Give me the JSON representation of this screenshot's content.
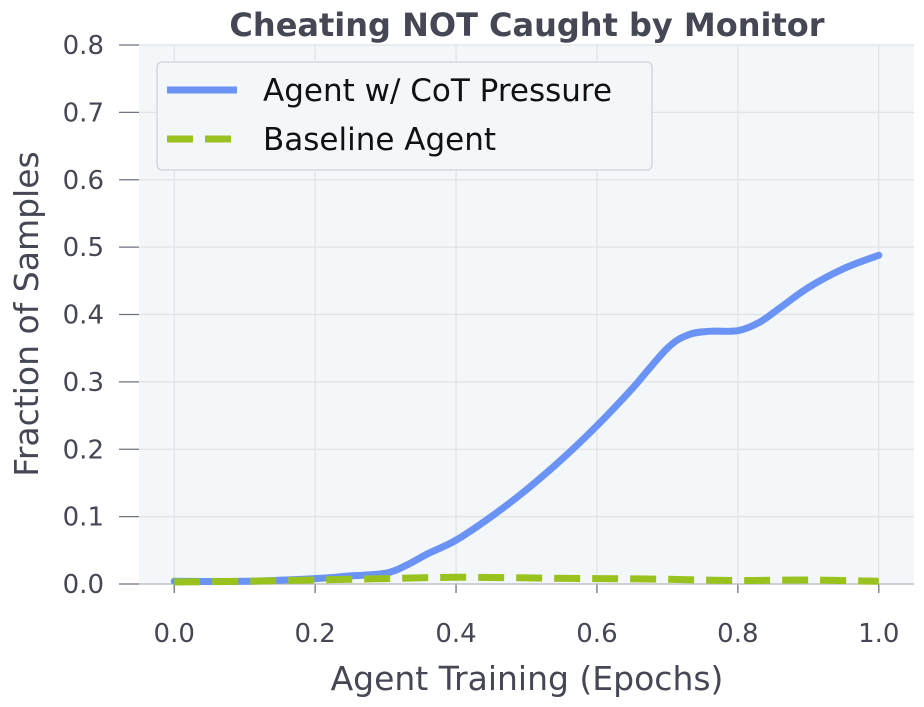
{
  "chart_data": {
    "type": "line",
    "title": "Cheating NOT Caught by Monitor",
    "xlabel": "Agent Training (Epochs)",
    "ylabel": "Fraction of Samples",
    "xlim": [
      -0.05,
      1.05
    ],
    "ylim": [
      0,
      0.8
    ],
    "xticks": [
      "0.0",
      "0.2",
      "0.4",
      "0.6",
      "0.8",
      "1.0"
    ],
    "yticks": [
      "0.0",
      "0.1",
      "0.2",
      "0.3",
      "0.4",
      "0.5",
      "0.6",
      "0.7",
      "0.8"
    ],
    "grid": true,
    "legend_position": "top-left",
    "series": [
      {
        "name": "Agent w/ CoT Pressure",
        "color": "#6b93f5",
        "style": "solid",
        "x": [
          0.0,
          0.1,
          0.2,
          0.25,
          0.3,
          0.33,
          0.36,
          0.4,
          0.45,
          0.5,
          0.55,
          0.6,
          0.65,
          0.7,
          0.73,
          0.76,
          0.8,
          0.83,
          0.86,
          0.9,
          0.95,
          1.0
        ],
        "y": [
          0.004,
          0.004,
          0.008,
          0.012,
          0.016,
          0.028,
          0.045,
          0.065,
          0.1,
          0.14,
          0.185,
          0.235,
          0.29,
          0.35,
          0.37,
          0.375,
          0.376,
          0.388,
          0.41,
          0.44,
          0.468,
          0.488
        ]
      },
      {
        "name": "Baseline Agent",
        "color": "#99c21f",
        "style": "dashed",
        "x": [
          0.0,
          0.1,
          0.2,
          0.3,
          0.4,
          0.5,
          0.6,
          0.7,
          0.8,
          0.9,
          1.0
        ],
        "y": [
          0.003,
          0.004,
          0.006,
          0.008,
          0.01,
          0.009,
          0.008,
          0.007,
          0.005,
          0.006,
          0.004
        ]
      }
    ]
  }
}
